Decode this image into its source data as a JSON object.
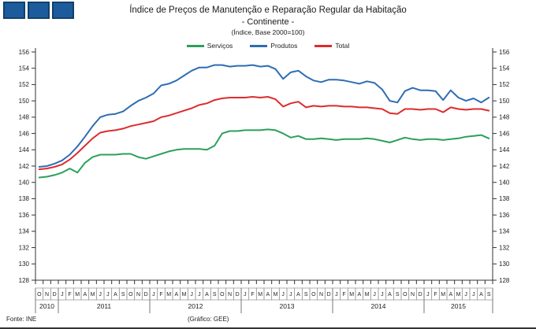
{
  "header": {
    "title_line1": "Índice de Preços de Manutenção e Reparação Regular da Habitação",
    "title_line2": "- Continente -",
    "title_line3": "(Índice, Base 2000=100)",
    "logo_fill": "#1C5C9C",
    "logo_border": "#123F6B"
  },
  "legend": [
    {
      "label": "Serviços",
      "color": "#2BA05A"
    },
    {
      "label": "Produtos",
      "color": "#2E6DB4"
    },
    {
      "label": "Total",
      "color": "#DD2C2C"
    }
  ],
  "footer": {
    "source": "Fonte: INE",
    "credit": "(Gráfico: GEE)"
  },
  "chart_data": {
    "type": "line",
    "title": "Índice de Preços de Manutenção e Reparação Regular da Habitação - Continente - (Índice, Base 2000=100)",
    "xlabel": "",
    "ylabel": "",
    "ylim": [
      128,
      156
    ],
    "yticks": [
      128,
      130,
      132,
      134,
      136,
      138,
      140,
      142,
      144,
      146,
      148,
      150,
      152,
      154,
      156
    ],
    "grid": false,
    "legend_position": "top",
    "axis_labels_both_sides": true,
    "x_months": [
      "O",
      "N",
      "D",
      "J",
      "F",
      "M",
      "A",
      "M",
      "J",
      "J",
      "A",
      "S",
      "O",
      "N",
      "D",
      "J",
      "F",
      "M",
      "A",
      "M",
      "J",
      "J",
      "A",
      "S",
      "O",
      "N",
      "D",
      "J",
      "F",
      "M",
      "A",
      "M",
      "J",
      "J",
      "A",
      "S",
      "O",
      "N",
      "D",
      "J",
      "F",
      "M",
      "A",
      "M",
      "J",
      "J",
      "A",
      "S",
      "O",
      "N",
      "D",
      "J",
      "F",
      "M",
      "A",
      "M",
      "J",
      "J",
      "A",
      "S"
    ],
    "years": [
      {
        "label": "2010",
        "months": 3
      },
      {
        "label": "2011",
        "months": 12
      },
      {
        "label": "2012",
        "months": 12
      },
      {
        "label": "2013",
        "months": 12
      },
      {
        "label": "2014",
        "months": 12
      },
      {
        "label": "2015",
        "months": 9
      }
    ],
    "series": [
      {
        "name": "Serviços",
        "color": "#2BA05A",
        "values": [
          140.6,
          140.7,
          140.9,
          141.2,
          141.7,
          141.2,
          142.4,
          143.1,
          143.4,
          143.4,
          143.4,
          143.5,
          143.5,
          143.1,
          142.9,
          143.2,
          143.5,
          143.8,
          144.0,
          144.1,
          144.1,
          144.1,
          144.0,
          144.5,
          146.0,
          146.3,
          146.3,
          146.4,
          146.4,
          146.4,
          146.5,
          146.4,
          146.0,
          145.5,
          145.7,
          145.3,
          145.3,
          145.4,
          145.3,
          145.2,
          145.3,
          145.3,
          145.3,
          145.4,
          145.3,
          145.1,
          144.9,
          145.2,
          145.5,
          145.3,
          145.2,
          145.3,
          145.3,
          145.2,
          145.3,
          145.4,
          145.6,
          145.7,
          145.8,
          145.4
        ]
      },
      {
        "name": "Produtos",
        "color": "#2E6DB4",
        "values": [
          141.9,
          142.0,
          142.3,
          142.7,
          143.4,
          144.4,
          145.6,
          146.9,
          148.0,
          148.3,
          148.4,
          148.7,
          149.4,
          150.0,
          150.4,
          150.9,
          151.9,
          152.1,
          152.5,
          153.1,
          153.7,
          154.1,
          154.1,
          154.4,
          154.4,
          154.2,
          154.3,
          154.3,
          154.4,
          154.2,
          154.3,
          153.9,
          152.7,
          153.5,
          153.7,
          153.0,
          152.5,
          152.3,
          152.6,
          152.6,
          152.5,
          152.3,
          152.1,
          152.4,
          152.2,
          151.4,
          150.0,
          149.8,
          151.2,
          151.6,
          151.3,
          151.3,
          151.2,
          150.1,
          151.3,
          150.4,
          150.0,
          150.3,
          149.8,
          150.4
        ]
      },
      {
        "name": "Total",
        "color": "#DD2C2C",
        "values": [
          141.6,
          141.7,
          141.9,
          142.2,
          142.8,
          143.6,
          144.5,
          145.4,
          146.1,
          146.3,
          146.4,
          146.6,
          146.9,
          147.1,
          147.3,
          147.5,
          148.0,
          148.2,
          148.5,
          148.8,
          149.1,
          149.5,
          149.7,
          150.1,
          150.3,
          150.4,
          150.4,
          150.4,
          150.5,
          150.4,
          150.5,
          150.2,
          149.3,
          149.7,
          149.9,
          149.2,
          149.4,
          149.3,
          149.4,
          149.4,
          149.3,
          149.3,
          149.2,
          149.2,
          149.1,
          149.0,
          148.5,
          148.4,
          149.0,
          149.0,
          148.9,
          149.0,
          149.0,
          148.6,
          149.2,
          149.0,
          148.9,
          149.0,
          149.0,
          148.8
        ]
      }
    ]
  }
}
